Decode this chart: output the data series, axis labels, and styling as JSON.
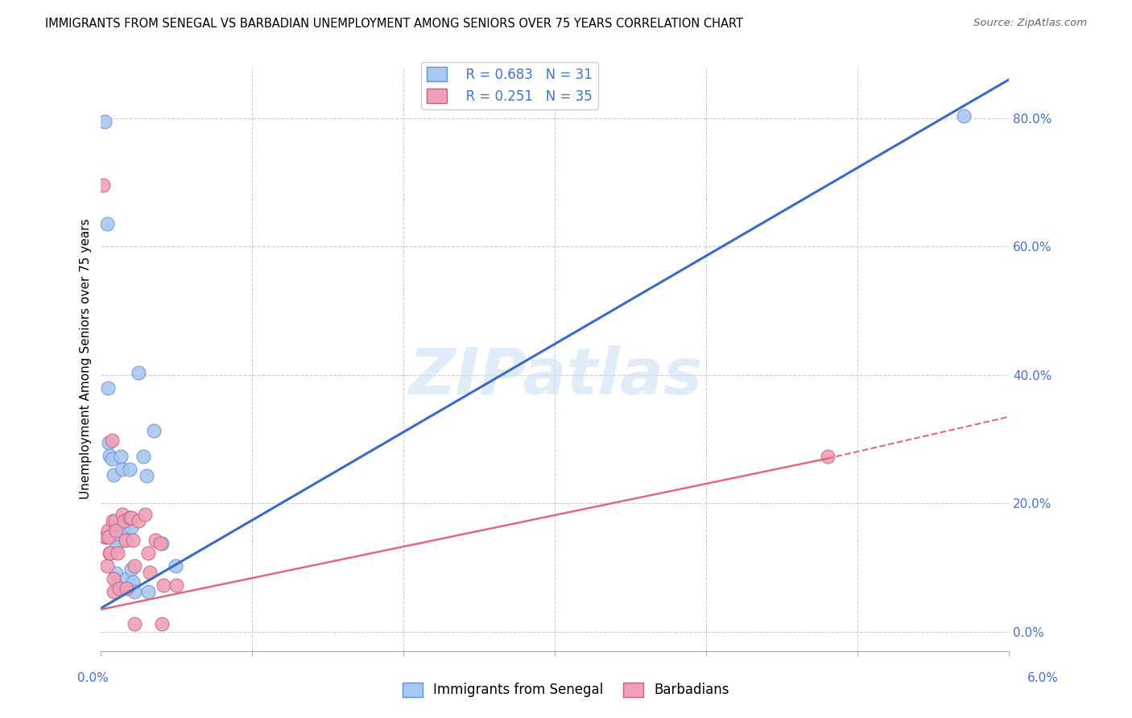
{
  "title": "IMMIGRANTS FROM SENEGAL VS BARBADIAN UNEMPLOYMENT AMONG SENIORS OVER 75 YEARS CORRELATION CHART",
  "source": "Source: ZipAtlas.com",
  "ylabel": "Unemployment Among Seniors over 75 years",
  "ylabel_right_ticks": [
    "0.0%",
    "20.0%",
    "40.0%",
    "60.0%",
    "80.0%"
  ],
  "ylabel_right_vals": [
    0.0,
    0.2,
    0.4,
    0.6,
    0.8
  ],
  "xmin": 0.0,
  "xmax": 0.06,
  "ymin": -0.03,
  "ymax": 0.88,
  "legend1_R": "0.683",
  "legend1_N": "31",
  "legend2_R": "0.251",
  "legend2_N": "35",
  "blue_color": "#A8C8F0",
  "pink_color": "#F0A0B8",
  "blue_line_color": "#3A6BC4",
  "pink_line_color": "#E06880",
  "blue_scatter": [
    [
      0.00025,
      0.795
    ],
    [
      0.0004,
      0.635
    ],
    [
      0.00045,
      0.38
    ],
    [
      0.0005,
      0.295
    ],
    [
      0.00055,
      0.275
    ],
    [
      0.0007,
      0.27
    ],
    [
      0.0008,
      0.245
    ],
    [
      0.0008,
      0.163
    ],
    [
      0.0009,
      0.163
    ],
    [
      0.00095,
      0.148
    ],
    [
      0.001,
      0.133
    ],
    [
      0.001,
      0.092
    ],
    [
      0.0011,
      0.073
    ],
    [
      0.0013,
      0.273
    ],
    [
      0.0014,
      0.253
    ],
    [
      0.0015,
      0.163
    ],
    [
      0.0016,
      0.143
    ],
    [
      0.0017,
      0.083
    ],
    [
      0.0019,
      0.253
    ],
    [
      0.002,
      0.163
    ],
    [
      0.002,
      0.098
    ],
    [
      0.0021,
      0.078
    ],
    [
      0.0022,
      0.063
    ],
    [
      0.0025,
      0.403
    ],
    [
      0.0028,
      0.273
    ],
    [
      0.003,
      0.243
    ],
    [
      0.0031,
      0.063
    ],
    [
      0.0035,
      0.313
    ],
    [
      0.004,
      0.138
    ],
    [
      0.0049,
      0.103
    ],
    [
      0.057,
      0.803
    ]
  ],
  "pink_scatter": [
    [
      0.00015,
      0.695
    ],
    [
      0.00025,
      0.148
    ],
    [
      0.00035,
      0.148
    ],
    [
      0.0004,
      0.103
    ],
    [
      0.00045,
      0.158
    ],
    [
      0.0005,
      0.148
    ],
    [
      0.00055,
      0.123
    ],
    [
      0.0006,
      0.123
    ],
    [
      0.0007,
      0.298
    ],
    [
      0.00075,
      0.173
    ],
    [
      0.0008,
      0.083
    ],
    [
      0.00085,
      0.063
    ],
    [
      0.00095,
      0.173
    ],
    [
      0.001,
      0.158
    ],
    [
      0.0011,
      0.123
    ],
    [
      0.0012,
      0.068
    ],
    [
      0.0014,
      0.183
    ],
    [
      0.0015,
      0.173
    ],
    [
      0.0016,
      0.143
    ],
    [
      0.0017,
      0.068
    ],
    [
      0.0019,
      0.178
    ],
    [
      0.002,
      0.178
    ],
    [
      0.0021,
      0.143
    ],
    [
      0.0022,
      0.103
    ],
    [
      0.0025,
      0.173
    ],
    [
      0.0029,
      0.183
    ],
    [
      0.0031,
      0.123
    ],
    [
      0.0032,
      0.093
    ],
    [
      0.0036,
      0.143
    ],
    [
      0.0039,
      0.138
    ],
    [
      0.0041,
      0.073
    ],
    [
      0.005,
      0.073
    ],
    [
      0.0022,
      0.013
    ],
    [
      0.004,
      0.013
    ],
    [
      0.048,
      0.273
    ]
  ],
  "blue_line": [
    [
      0.0,
      0.037
    ],
    [
      0.06,
      0.86
    ]
  ],
  "pink_line_solid": [
    [
      0.0,
      0.035
    ],
    [
      0.048,
      0.27
    ]
  ],
  "pink_line_dashed": [
    [
      0.048,
      0.27
    ],
    [
      0.06,
      0.335
    ]
  ],
  "watermark": "ZIPatlas",
  "legend_items": [
    "Immigrants from Senegal",
    "Barbadians"
  ]
}
